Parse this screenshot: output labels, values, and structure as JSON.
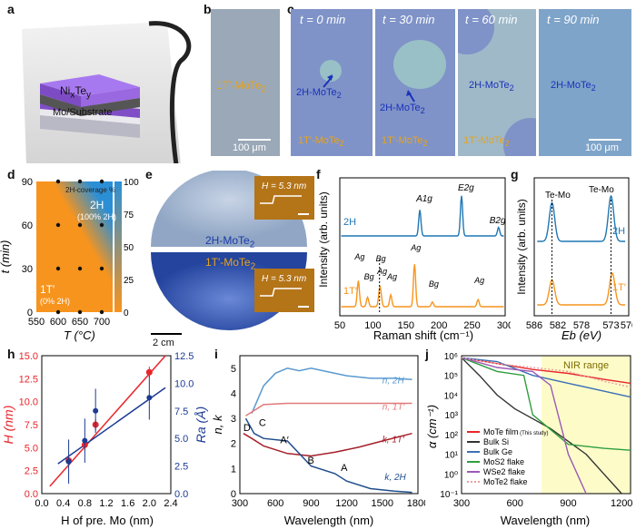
{
  "panels": {
    "a": "a",
    "b": "b",
    "c": "c",
    "d": "d",
    "e": "e",
    "f": "f",
    "g": "g",
    "h": "h",
    "i": "i",
    "j": "j"
  },
  "panel_a": {
    "top_layer": "Ni",
    "top_layer_sub1": "x",
    "top_layer_mid": "Te",
    "top_layer_sub2": "y",
    "bottom_layer": "Mo/Substrate"
  },
  "panel_b": {
    "label": "1T′-MoTe",
    "label_sub": "2",
    "scale": "100 μm"
  },
  "panel_c": {
    "tiles": [
      {
        "time": "t = 0 min",
        "label_2h": "2H-MoTe",
        "label_1t": "1T′-MoTe"
      },
      {
        "time": "t = 30 min",
        "label_2h": "2H-MoTe",
        "label_1t": "1T′-MoTe"
      },
      {
        "time": "t = 60 min",
        "label_2h": "2H-MoTe",
        "label_1t": "1T′-MoTe"
      },
      {
        "time": "t = 90 min",
        "label_2h": "2H-MoTe",
        "label_1t": ""
      }
    ],
    "sub": "2",
    "scale": "100 μm"
  },
  "panel_e": {
    "label_2h": "2H-MoTe",
    "label_1t": "1T′-MoTe",
    "sub": "2",
    "scale": "2 cm",
    "h_top": "H = 5.3 nm",
    "h_bot": "H = 5.3 nm"
  },
  "colors": {
    "orange": "#f7941d",
    "blue": "#1f77b4",
    "red": "#e8262b",
    "navy": "#1b3a93",
    "darkblue": "#1f4e8c"
  },
  "chart_data": [
    {
      "panel": "d",
      "type": "heatmap",
      "title": "2H-coverage %",
      "xlabel": "T (°C)",
      "ylabel": "t (min)",
      "xticks": [
        550,
        600,
        650,
        700
      ],
      "yticks": [
        0,
        30,
        60,
        90
      ],
      "colorbar_ticks": [
        0,
        25,
        50,
        75,
        100
      ],
      "points": [
        [
          600,
          0
        ],
        [
          650,
          0
        ],
        [
          700,
          0
        ],
        [
          600,
          30
        ],
        [
          650,
          30
        ],
        [
          700,
          30
        ],
        [
          600,
          60
        ],
        [
          650,
          60
        ],
        [
          700,
          60
        ],
        [
          600,
          90
        ],
        [
          650,
          90
        ],
        [
          700,
          90
        ]
      ],
      "annotations": [
        "2H",
        "(100% 2H)",
        "1T′",
        "(0% 2H)"
      ]
    },
    {
      "panel": "f",
      "type": "line",
      "xlabel": "Raman shift (cm⁻¹)",
      "ylabel": "Intensity (arb. units)",
      "xticks": [
        50,
        100,
        150,
        200,
        250,
        300
      ],
      "series": [
        {
          "name": "2H",
          "peaks": [
            [
              "A1g",
              171
            ],
            [
              "E2g",
              234
            ],
            [
              "B2g",
              290
            ]
          ]
        },
        {
          "name": "1T′",
          "peaks": [
            [
              "Ag",
              78
            ],
            [
              "Bg",
              92
            ],
            [
              "Bg",
              110
            ],
            [
              "Ag",
              112
            ],
            [
              "Ag",
              127
            ],
            [
              "Ag",
              163
            ],
            [
              "Bg",
              190
            ],
            [
              "Ag",
              259
            ]
          ]
        }
      ]
    },
    {
      "panel": "g",
      "type": "line",
      "xlabel": "Eb (eV)",
      "ylabel": "Intensity (arb. units)",
      "xticks": [
        586,
        582,
        578,
        573,
        570
      ],
      "series": [
        {
          "name": "2H",
          "peaks": [
            583,
            573
          ]
        },
        {
          "name": "1T′",
          "peaks": [
            583,
            572.8
          ]
        }
      ],
      "annotations": [
        "Te-Mo",
        "Te-Mo"
      ]
    },
    {
      "panel": "h",
      "type": "scatter",
      "xlabel": "H of pre. Mo (nm)",
      "ylabel": "H (nm)",
      "y2label": "Ra (Å)",
      "xlim": [
        0,
        2.4
      ],
      "ylim": [
        0,
        15
      ],
      "y2lim": [
        0,
        12.5
      ],
      "xticks": [
        "0.0",
        "0.4",
        "0.8",
        "1.2",
        "1.6",
        "2.0",
        "2.4"
      ],
      "yticks": [
        "0.0",
        "2.5",
        "5.0",
        "7.5",
        "10.0",
        "12.5",
        "15.0"
      ],
      "y2ticks": [
        "0.0",
        "2.5",
        "5.0",
        "7.5",
        "10.0",
        "12.5"
      ],
      "series": [
        {
          "name": "H",
          "x": [
            0.5,
            0.8,
            1.0,
            2.0
          ],
          "y": [
            3.6,
            5.3,
            7.5,
            13.2
          ]
        },
        {
          "name": "Ra",
          "x": [
            0.5,
            0.8,
            1.0,
            2.0
          ],
          "y": [
            2.9,
            4.8,
            7.5,
            8.7
          ]
        }
      ]
    },
    {
      "panel": "i",
      "type": "line",
      "xlabel": "Wavelength (nm)",
      "ylabel": "n, k",
      "xlim": [
        300,
        1800
      ],
      "ylim": [
        0,
        5.5
      ],
      "xticks": [
        300,
        600,
        900,
        1200,
        1500,
        1800
      ],
      "yticks": [
        0,
        1,
        2,
        3,
        4,
        5
      ],
      "series": [
        {
          "name": "n, 2H",
          "x": [
            400,
            500,
            600,
            700,
            800,
            900,
            1000,
            1200,
            1400,
            1600,
            1750
          ],
          "y": [
            3.2,
            4.3,
            4.8,
            5.0,
            4.9,
            5.0,
            4.9,
            4.7,
            4.6,
            4.6,
            4.55
          ]
        },
        {
          "name": "n, 1T′",
          "x": [
            350,
            500,
            700,
            1000,
            1400,
            1750
          ],
          "y": [
            3.1,
            3.55,
            3.6,
            3.6,
            3.6,
            3.6
          ]
        },
        {
          "name": "k, 1T′",
          "x": [
            330,
            400,
            500,
            700,
            900,
            1100,
            1300,
            1500,
            1750
          ],
          "y": [
            2.4,
            2.2,
            1.9,
            1.6,
            1.5,
            1.65,
            1.85,
            2.1,
            2.4
          ]
        },
        {
          "name": "k, 2H",
          "x": [
            350,
            420,
            500,
            700,
            900,
            1100,
            1200,
            1400,
            1600,
            1750
          ],
          "y": [
            3.0,
            2.4,
            2.2,
            2.1,
            1.1,
            0.8,
            0.5,
            0.2,
            0.1,
            0.05
          ]
        }
      ],
      "annotations": [
        "D",
        "C",
        "A′",
        "B",
        "A"
      ]
    },
    {
      "panel": "j",
      "type": "line",
      "xlabel": "Wavelength (nm)",
      "ylabel": "α (cm⁻¹)",
      "xlim": [
        300,
        1250
      ],
      "xticks": [
        300,
        600,
        900,
        1200
      ],
      "yticks": [
        "10⁻¹",
        "10⁰",
        "10¹",
        "10²",
        "10³",
        "10⁴",
        "10⁵",
        "10⁶"
      ],
      "shaded": "NIR range",
      "series": [
        {
          "name": "MoTe film",
          "note": "(This study)"
        },
        {
          "name": "Bulk Si"
        },
        {
          "name": "Bulk Ge"
        },
        {
          "name": "MoS2 flake"
        },
        {
          "name": "WSe2 flake"
        },
        {
          "name": "MoTe2 flake"
        }
      ]
    }
  ]
}
